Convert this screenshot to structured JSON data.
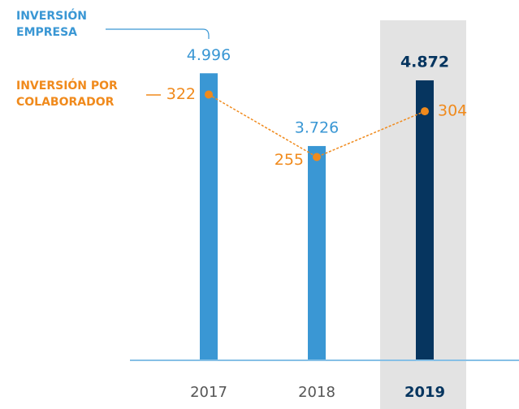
{
  "chart_data": {
    "type": "bar-line",
    "categories": [
      "2017",
      "2018",
      "2019"
    ],
    "highlight": "2019",
    "highlight_color": "#06355f",
    "highlight_background": "#e3e3e3",
    "series": [
      {
        "name": "INVERSIÓN EMPRESA",
        "type": "bar",
        "color": "#3a97d4",
        "values": [
          4996,
          3726,
          4872
        ],
        "value_labels": [
          "4.996",
          "3.726",
          "4.872"
        ]
      },
      {
        "name": "INVERSIÓN POR COLABORADOR",
        "type": "line",
        "axis": "y2",
        "color": "#f08a1c",
        "values": [
          322,
          255,
          304
        ]
      }
    ],
    "ylim": [
      0,
      5000
    ],
    "y2lim": [
      38,
      345
    ]
  }
}
